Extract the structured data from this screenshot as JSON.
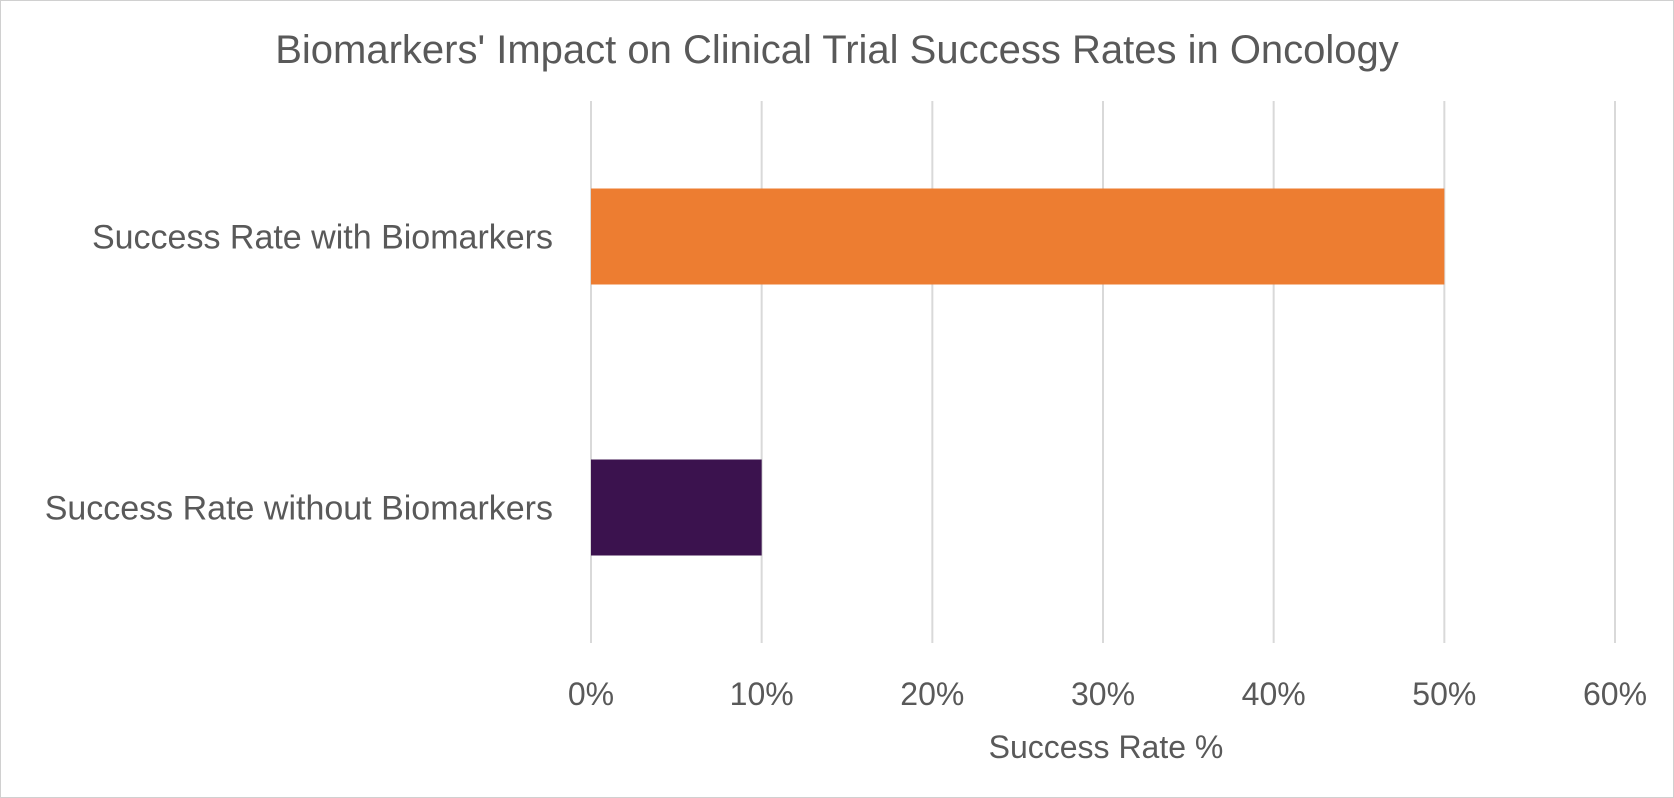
{
  "chart_data": {
    "type": "bar",
    "orientation": "horizontal",
    "title": "Biomarkers' Impact on Clinical Trial Success Rates in Oncology",
    "categories": [
      "Success Rate with Biomarkers",
      "Success Rate without Biomarkers"
    ],
    "values": [
      50,
      10
    ],
    "value_format": "percent",
    "colors": [
      "#ED7D31",
      "#3B124E"
    ],
    "xlabel": "Success Rate %",
    "ylabel": "",
    "xlim": [
      0,
      60
    ],
    "xticks": [
      0,
      10,
      20,
      30,
      40,
      50,
      60
    ],
    "xtick_labels": [
      "0%",
      "10%",
      "20%",
      "30%",
      "40%",
      "50%",
      "60%"
    ],
    "grid": true,
    "legend": "none"
  }
}
